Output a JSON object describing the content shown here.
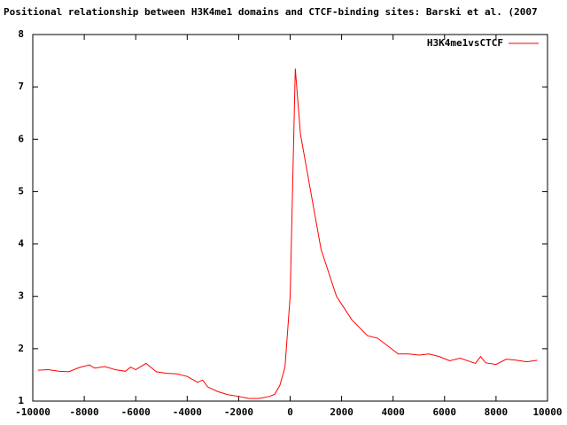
{
  "chart_data": {
    "type": "line",
    "title": "Positional relationship between H3K4me1 domains and CTCF-binding sites: Barski et al. (2007",
    "x": [
      -9800,
      -9400,
      -9000,
      -8600,
      -8200,
      -7800,
      -7600,
      -7200,
      -6800,
      -6400,
      -6200,
      -6000,
      -5600,
      -5200,
      -4800,
      -4400,
      -4000,
      -3600,
      -3400,
      -3200,
      -2800,
      -2400,
      -2000,
      -1600,
      -1200,
      -800,
      -600,
      -400,
      -200,
      0,
      200,
      400,
      800,
      1200,
      1800,
      2400,
      3000,
      3400,
      3800,
      4200,
      4600,
      5000,
      5400,
      5800,
      6200,
      6600,
      7200,
      7400,
      7600,
      8000,
      8400,
      8800,
      9200,
      9600
    ],
    "series": [
      {
        "name": "H3K4me1vsCTCF",
        "color": "#ff0000",
        "values": [
          1.59,
          1.6,
          1.57,
          1.56,
          1.64,
          1.69,
          1.63,
          1.66,
          1.6,
          1.57,
          1.65,
          1.6,
          1.72,
          1.56,
          1.53,
          1.52,
          1.47,
          1.36,
          1.4,
          1.27,
          1.18,
          1.12,
          1.09,
          1.05,
          1.05,
          1.09,
          1.13,
          1.3,
          1.65,
          3.0,
          7.35,
          6.1,
          5.0,
          3.9,
          3.0,
          2.55,
          2.25,
          2.2,
          2.05,
          1.9,
          1.9,
          1.88,
          1.9,
          1.85,
          1.77,
          1.82,
          1.72,
          1.85,
          1.73,
          1.7,
          1.8,
          1.78,
          1.75,
          1.78
        ]
      }
    ],
    "xlim": [
      -10000,
      10000
    ],
    "xticks": [
      -10000,
      -8000,
      -6000,
      -4000,
      -2000,
      0,
      2000,
      4000,
      6000,
      8000,
      10000
    ],
    "ylim": [
      1,
      8
    ],
    "yticks": [
      1,
      2,
      3,
      4,
      5,
      6,
      7,
      8
    ],
    "legend": "upper right"
  }
}
